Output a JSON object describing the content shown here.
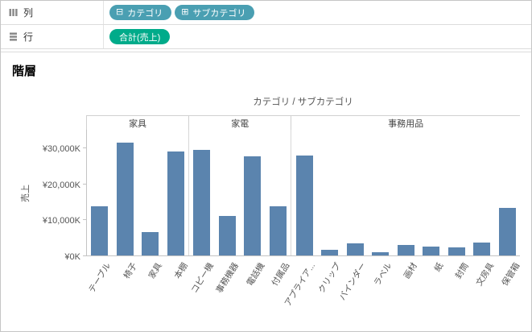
{
  "shelves": {
    "columns": {
      "label": "列",
      "pills": [
        {
          "label": "カテゴリ",
          "icon": "⊟"
        },
        {
          "label": "サブカテゴリ",
          "icon": "⊞"
        }
      ]
    },
    "rows": {
      "label": "行",
      "pills": [
        {
          "label": "合計(売上)"
        }
      ]
    }
  },
  "sheet": {
    "title": "階層"
  },
  "colors": {
    "dimension_pill": "#4a9fb2",
    "measure_pill": "#00ab8a",
    "bar": "#5b84ae",
    "axis_line": "#c4c4c4"
  },
  "chart_data": {
    "type": "bar",
    "title": "カテゴリ / サブカテゴリ",
    "ylabel": "売上",
    "ylim": [
      0,
      35000
    ],
    "unit": "K (JPY)",
    "legend": "none",
    "grid": "off",
    "yticks": [
      {
        "label": "¥0K",
        "value": 0
      },
      {
        "label": "¥10,000K",
        "value": 10000
      },
      {
        "label": "¥20,000K",
        "value": 20000
      },
      {
        "label": "¥30,000K",
        "value": 30000
      }
    ],
    "groups": [
      {
        "label": "家具",
        "categories": [
          "テーブル",
          "椅子",
          "家具",
          "本棚"
        ],
        "values": [
          13800,
          31500,
          6500,
          29000
        ]
      },
      {
        "label": "家電",
        "categories": [
          "コピー機",
          "事務機器",
          "電話機",
          "付属品"
        ],
        "values": [
          29500,
          11000,
          27500,
          13800
        ]
      },
      {
        "label": "事務用品",
        "categories": [
          "アプライア...",
          "クリップ",
          "バインダー",
          "ラベル",
          "画材",
          "紙",
          "封筒",
          "文房具",
          "保管箱"
        ],
        "values": [
          27800,
          1600,
          3300,
          900,
          2900,
          2400,
          2200,
          3600,
          13300
        ]
      }
    ],
    "bar_color": "#5b84ae"
  }
}
